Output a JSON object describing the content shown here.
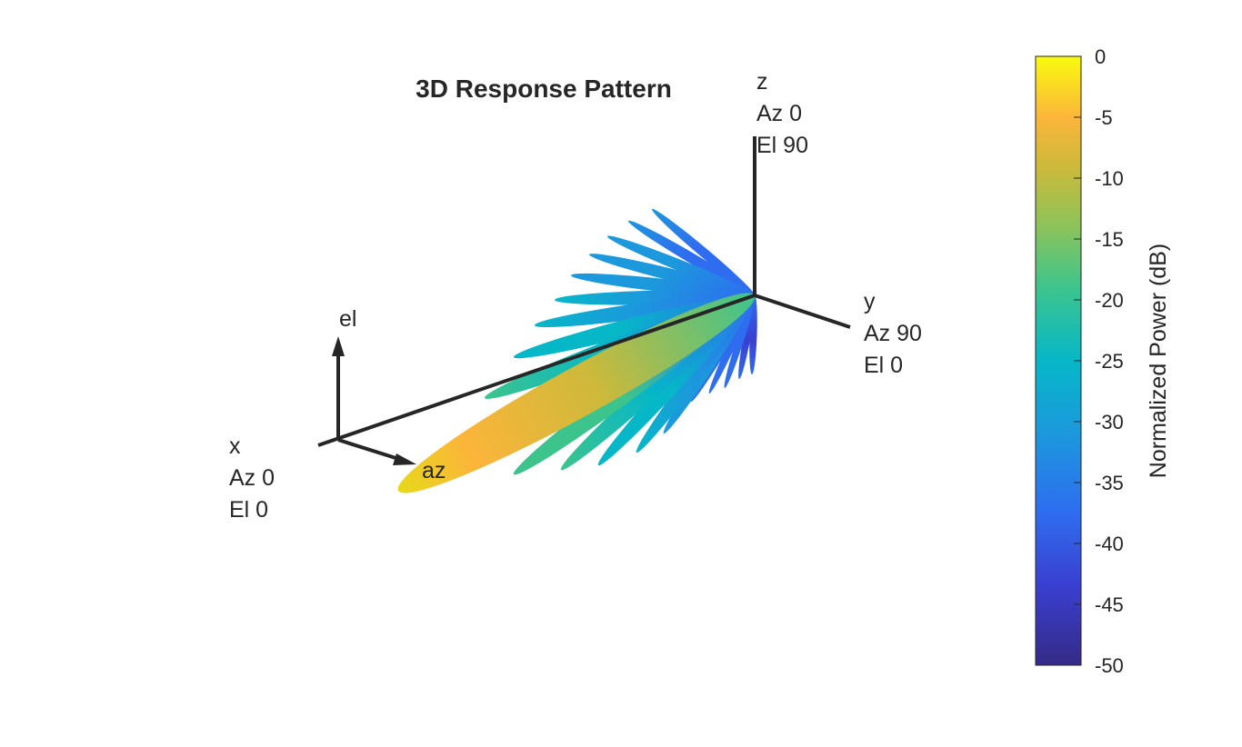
{
  "chart_data": {
    "type": "3d-pattern",
    "title": "3D Response Pattern",
    "axis_labels": {
      "x": [
        "x",
        "Az 0",
        "El 0"
      ],
      "y": [
        "y",
        "Az 90",
        "El 0"
      ],
      "z": [
        "z",
        "Az 0",
        "El 90"
      ],
      "el": "el",
      "az": "az"
    },
    "colorbar": {
      "label": "Normalized Power (dB)",
      "range": [
        -50,
        0
      ],
      "ticks": [
        "0",
        "-5",
        "-10",
        "-15",
        "-20",
        "-25",
        "-30",
        "-35",
        "-40",
        "-45",
        "-50"
      ],
      "colormap": "parula"
    }
  }
}
